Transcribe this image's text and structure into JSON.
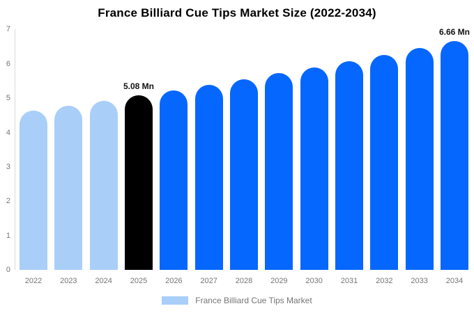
{
  "page": {
    "background": "#ffffff"
  },
  "chart_data": {
    "type": "bar",
    "title": "France Billiard Cue Tips Market Size (2022-2034)",
    "unit": "Mn",
    "categories": [
      "2022",
      "2023",
      "2024",
      "2025",
      "2026",
      "2027",
      "2028",
      "2029",
      "2030",
      "2031",
      "2032",
      "2033",
      "2034"
    ],
    "values": [
      4.64,
      4.78,
      4.93,
      5.08,
      5.23,
      5.39,
      5.56,
      5.73,
      5.9,
      6.08,
      6.27,
      6.46,
      6.66
    ],
    "segments": [
      "historical",
      "historical",
      "historical",
      "base_year",
      "forecast",
      "forecast",
      "forecast",
      "forecast",
      "forecast",
      "forecast",
      "forecast",
      "forecast",
      "forecast"
    ],
    "ylim": [
      0,
      7
    ],
    "yticks": [
      0,
      1,
      2,
      3,
      4,
      5,
      6,
      7
    ],
    "grid": false,
    "bar_style": "rounded-top",
    "colors": {
      "historical": "#A9CEF8",
      "base_year": "#000000",
      "forecast": "#0667FE",
      "axis_line": "#D9D9D9",
      "tick_text": "#757575",
      "title_text": "#000000",
      "annotation_text": "#111111"
    },
    "annotations": [
      {
        "category": "2025",
        "text": "5.08 Mn"
      },
      {
        "category": "2034",
        "text": "6.66 Mn"
      }
    ],
    "legend": {
      "position": "bottom",
      "items": [
        {
          "label": "France Billiard Cue Tips Market",
          "swatch_color": "#A9CEF8"
        }
      ]
    }
  }
}
